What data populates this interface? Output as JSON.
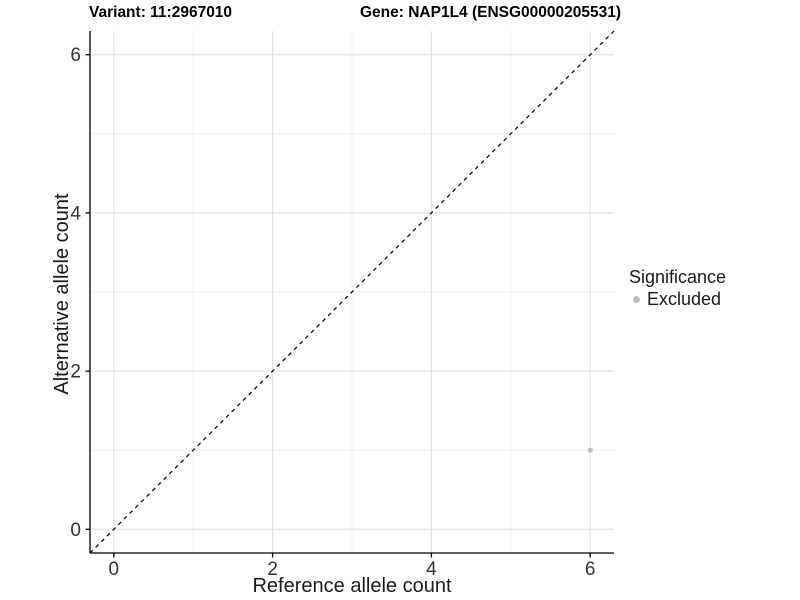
{
  "chart_data": {
    "type": "scatter",
    "title_left": "Variant: 11:2967010",
    "title_right": "Gene: NAP1L4 (ENSG00000205531)",
    "xlabel": "Reference allele count",
    "ylabel": "Alternative allele count",
    "xlim": [
      -0.3,
      6.3
    ],
    "ylim": [
      -0.3,
      6.3
    ],
    "xticks": [
      0,
      2,
      4,
      6
    ],
    "yticks": [
      0,
      2,
      4,
      6
    ],
    "xticks_minor": [
      1,
      3,
      5
    ],
    "yticks_minor": [
      1,
      3,
      5
    ],
    "grid": "major+minor",
    "identity_line": {
      "style": "dashed",
      "color": "#000000",
      "from": [
        -0.3,
        -0.3
      ],
      "to": [
        6.3,
        6.3
      ]
    },
    "series": [
      {
        "name": "Excluded",
        "color": "#bcbcbc",
        "points": [
          {
            "x": 6,
            "y": 1
          }
        ]
      }
    ],
    "legend": {
      "title": "Significance",
      "position": "right",
      "entries": [
        {
          "label": "Excluded",
          "color": "#bcbcbc"
        }
      ]
    }
  },
  "colors": {
    "grid_major": "#e4e4e4",
    "grid_minor": "#f1f1f1",
    "axis_line": "#000000",
    "tick_label": "#333333",
    "point": "#bcbcbc"
  }
}
